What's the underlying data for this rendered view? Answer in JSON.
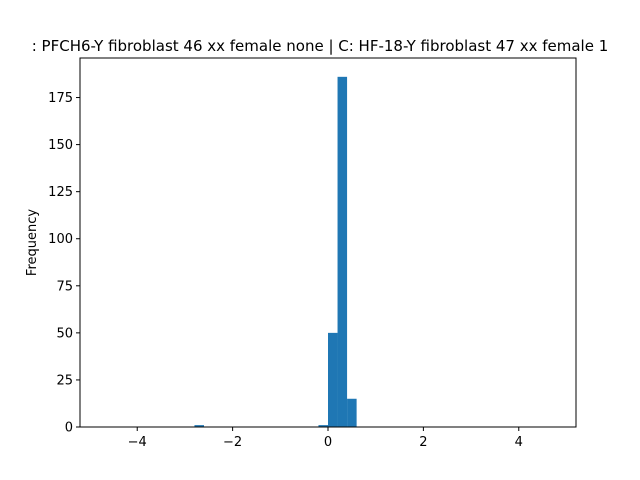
{
  "chart_data": {
    "type": "bar",
    "title": ": PFCH6-Y fibroblast 46 xx female none | C: HF-18-Y fibroblast 47 xx female 1",
    "xlabel": "",
    "ylabel": "Frequency",
    "xlim": [
      -5.2,
      5.2
    ],
    "ylim": [
      0,
      196
    ],
    "x_ticks": [
      -4,
      -2,
      0,
      2,
      4
    ],
    "x_tick_labels": [
      "−4",
      "−2",
      "0",
      "2",
      "4"
    ],
    "y_ticks": [
      0,
      25,
      50,
      75,
      100,
      125,
      150,
      175
    ],
    "y_tick_labels": [
      "0",
      "25",
      "50",
      "75",
      "100",
      "125",
      "150",
      "175"
    ],
    "grid": false,
    "bar_color": "#1f77b4",
    "bins": [
      {
        "x0": -2.8,
        "x1": -2.6,
        "count": 1
      },
      {
        "x0": -0.2,
        "x1": 0.0,
        "count": 1
      },
      {
        "x0": 0.0,
        "x1": 0.2,
        "count": 50
      },
      {
        "x0": 0.2,
        "x1": 0.4,
        "count": 186
      },
      {
        "x0": 0.4,
        "x1": 0.6,
        "count": 15
      }
    ]
  }
}
